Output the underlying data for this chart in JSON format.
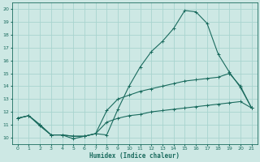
{
  "xlabel": "Humidex (Indice chaleur)",
  "bg_color": "#cde8e4",
  "grid_color": "#a8d4cf",
  "line_color": "#1a6b5e",
  "x": [
    0,
    1,
    2,
    3,
    4,
    5,
    6,
    7,
    8,
    9,
    10,
    11,
    12,
    13,
    14,
    15,
    16,
    17,
    18,
    19,
    20,
    21
  ],
  "curve1": [
    11.5,
    11.7,
    10.9,
    10.2,
    10.2,
    9.9,
    10.1,
    10.3,
    10.2,
    12.2,
    14.0,
    15.5,
    16.7,
    17.5,
    18.5,
    19.9,
    19.8,
    18.9,
    16.5,
    15.1,
    13.9,
    12.3
  ],
  "curve2": [
    11.5,
    11.7,
    11.0,
    10.2,
    10.2,
    10.1,
    10.1,
    10.3,
    12.1,
    13.0,
    13.3,
    13.6,
    13.8,
    14.0,
    14.2,
    14.4,
    14.5,
    14.6,
    14.7,
    15.0,
    14.0,
    12.3
  ],
  "curve3": [
    11.5,
    11.7,
    11.0,
    10.2,
    10.2,
    10.1,
    10.1,
    10.3,
    11.2,
    11.5,
    11.7,
    11.8,
    12.0,
    12.1,
    12.2,
    12.3,
    12.4,
    12.5,
    12.6,
    12.7,
    12.8,
    12.3
  ],
  "xlim": [
    -0.5,
    21.5
  ],
  "ylim": [
    9.5,
    20.5
  ],
  "yticks": [
    10,
    11,
    12,
    13,
    14,
    15,
    16,
    17,
    18,
    19,
    20
  ],
  "xticks": [
    0,
    1,
    2,
    3,
    4,
    5,
    6,
    7,
    8,
    9,
    10,
    11,
    12,
    13,
    14,
    15,
    16,
    17,
    18,
    19,
    20,
    21
  ]
}
